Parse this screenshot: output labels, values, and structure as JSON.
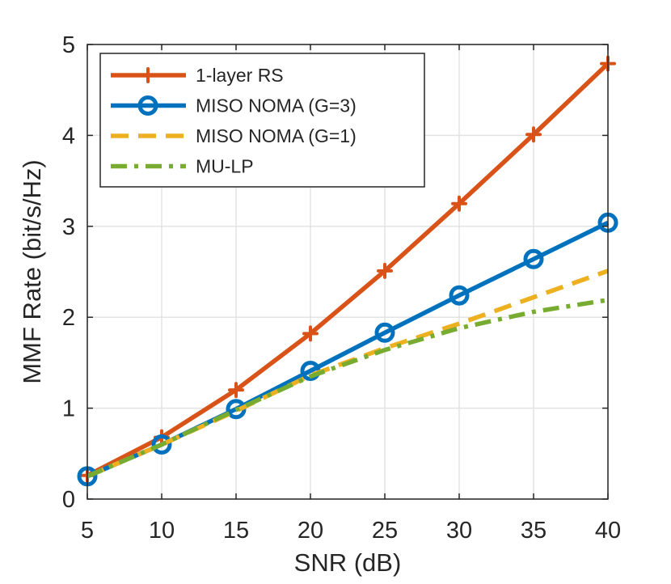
{
  "chart_data": {
    "type": "line",
    "title": "",
    "xlabel": "SNR (dB)",
    "ylabel": "MMF Rate (bit/s/Hz)",
    "xlim": [
      5,
      40
    ],
    "ylim": [
      0,
      5
    ],
    "xticks": [
      5,
      10,
      15,
      20,
      25,
      30,
      35,
      40
    ],
    "yticks": [
      0,
      1,
      2,
      3,
      4,
      5
    ],
    "grid": true,
    "legend_position": "top-left",
    "x": [
      5,
      10,
      15,
      20,
      25,
      30,
      35,
      40
    ],
    "series": [
      {
        "name": "1-layer RS",
        "values": [
          0.26,
          0.68,
          1.2,
          1.82,
          2.51,
          3.25,
          4.01,
          4.79
        ],
        "color": "#D95319",
        "style": "solid",
        "marker": "plus"
      },
      {
        "name": "MISO NOMA (G=3)",
        "values": [
          0.25,
          0.6,
          0.99,
          1.41,
          1.83,
          2.24,
          2.64,
          3.04
        ],
        "color": "#0072BD",
        "style": "solid",
        "marker": "circle"
      },
      {
        "name": "MISO NOMA (G=1)",
        "values": [
          0.25,
          0.6,
          0.97,
          1.36,
          1.66,
          1.93,
          2.22,
          2.51
        ],
        "color": "#EDB120",
        "style": "dashed",
        "marker": "none"
      },
      {
        "name": "MU-LP",
        "values": [
          0.25,
          0.6,
          0.98,
          1.35,
          1.64,
          1.88,
          2.06,
          2.19
        ],
        "color": "#77AC30",
        "style": "dashdot",
        "marker": "none"
      }
    ]
  }
}
